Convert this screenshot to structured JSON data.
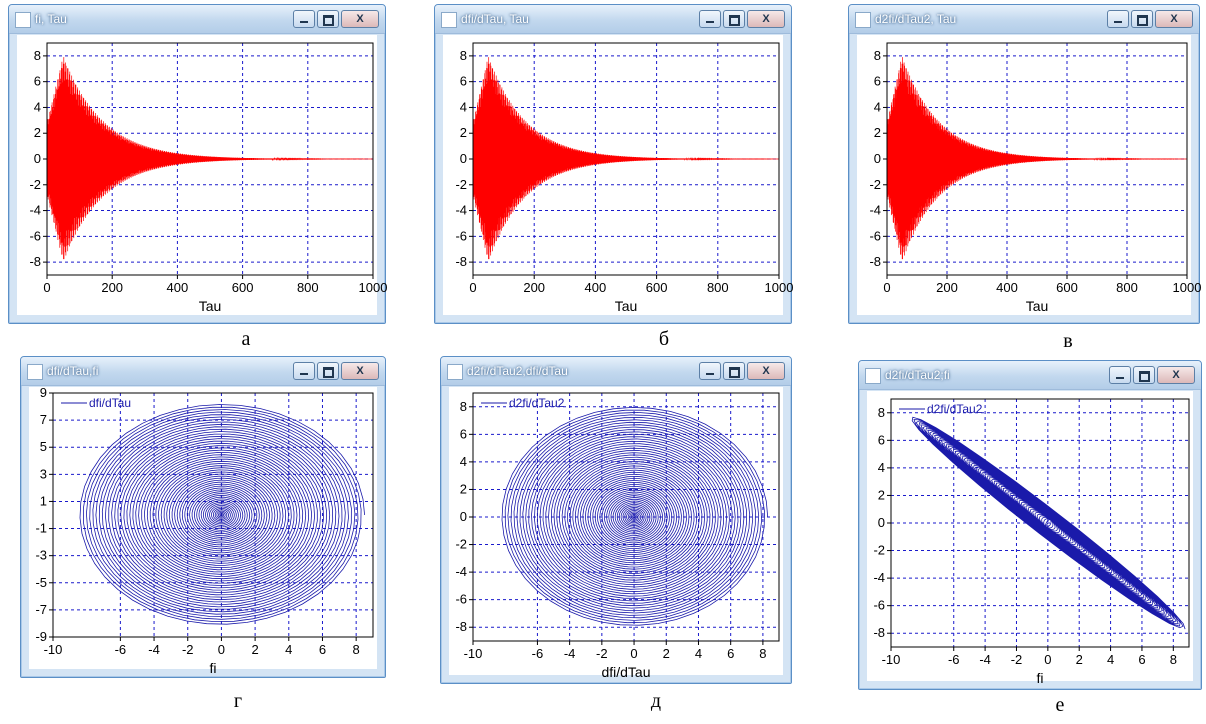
{
  "panel_labels": [
    "а",
    "б",
    "в",
    "г",
    "д",
    "е"
  ],
  "colors": {
    "time_trace": "#ff0000",
    "phase_trace": "#1a1aaa",
    "grid": "#1a1acc",
    "axis_text": "#000000"
  },
  "windows": [
    {
      "title": "fi, Tau",
      "close_label": "X"
    },
    {
      "title": "dfi/dTau, Tau",
      "close_label": "X"
    },
    {
      "title": "d2fi/dTau2, Tau",
      "close_label": "X"
    },
    {
      "title": "dfi/dTau,fi",
      "close_label": "X"
    },
    {
      "title": "d2fi/dTau2,dfi/dTau",
      "close_label": "X"
    },
    {
      "title": "d2fi/dTau2;fi",
      "close_label": "X"
    }
  ],
  "chart_data": [
    {
      "type": "line",
      "xlabel": "Tau",
      "ylabel": "",
      "xlim": [
        0,
        1000
      ],
      "ylim": [
        -9,
        9
      ],
      "grid": true,
      "x_ticks": [
        0,
        200,
        400,
        600,
        800,
        1000
      ],
      "y_ticks": [
        -8,
        -6,
        -4,
        -2,
        0,
        2,
        4,
        6,
        8
      ],
      "series": [
        {
          "color": "#ff0000",
          "envelope": {
            "amplitude": 8,
            "peak_at": 50,
            "decays_to_zero_by": 600
          }
        }
      ]
    },
    {
      "type": "line",
      "xlabel": "Tau",
      "ylabel": "",
      "xlim": [
        0,
        1000
      ],
      "ylim": [
        -9,
        9
      ],
      "grid": true,
      "x_ticks": [
        0,
        200,
        400,
        600,
        800,
        1000
      ],
      "y_ticks": [
        -8,
        -6,
        -4,
        -2,
        0,
        2,
        4,
        6,
        8
      ],
      "series": [
        {
          "color": "#ff0000",
          "envelope": {
            "amplitude": 8,
            "peak_at": 50,
            "decays_to_zero_by": 600
          }
        }
      ]
    },
    {
      "type": "line",
      "xlabel": "Tau",
      "ylabel": "",
      "xlim": [
        0,
        1000
      ],
      "ylim": [
        -9,
        9
      ],
      "grid": true,
      "x_ticks": [
        0,
        200,
        400,
        600,
        800,
        1000
      ],
      "y_ticks": [
        -8,
        -6,
        -4,
        -2,
        0,
        2,
        4,
        6,
        8
      ],
      "series": [
        {
          "color": "#ff0000",
          "envelope": {
            "amplitude": 8,
            "peak_at": 50,
            "decays_to_zero_by": 600
          }
        }
      ]
    },
    {
      "type": "line",
      "xlabel": "fi",
      "ylabel": "",
      "xlim": [
        -10,
        9
      ],
      "ylim": [
        -9,
        9
      ],
      "grid": true,
      "x_ticks": [
        -10,
        -6,
        -4,
        -2,
        0,
        2,
        4,
        6,
        8
      ],
      "y_ticks": [
        9,
        7,
        5,
        3,
        1,
        -1,
        -3,
        -5,
        -7,
        -9
      ],
      "legend": "top-left",
      "series": [
        {
          "name": "dfi/dTau",
          "color": "#1a1aaa",
          "shape": "spiral",
          "x_amplitude": 8.5,
          "y_amplitude": 8.2
        }
      ]
    },
    {
      "type": "line",
      "xlabel": "dfi/dTau",
      "ylabel": "",
      "xlim": [
        -10,
        9
      ],
      "ylim": [
        -9,
        9
      ],
      "grid": true,
      "x_ticks": [
        -10,
        -6,
        -4,
        -2,
        0,
        2,
        4,
        6,
        8
      ],
      "y_ticks": [
        8,
        6,
        4,
        2,
        0,
        -2,
        -4,
        -6,
        -8
      ],
      "legend": "top-left",
      "series": [
        {
          "name": "d2fi/dTau2",
          "color": "#1a1aaa",
          "shape": "spiral",
          "x_amplitude": 8.3,
          "y_amplitude": 8.0
        }
      ]
    },
    {
      "type": "line",
      "xlabel": "fi",
      "ylabel": "",
      "xlim": [
        -10,
        9
      ],
      "ylim": [
        -9,
        9
      ],
      "grid": true,
      "x_ticks": [
        -10,
        -6,
        -4,
        -2,
        0,
        2,
        4,
        6,
        8
      ],
      "y_ticks": [
        8,
        6,
        4,
        2,
        0,
        -2,
        -4,
        -6,
        -8
      ],
      "legend": "top-left",
      "series": [
        {
          "name": "d2fi/dTau2",
          "color": "#1a1aaa",
          "shape": "band",
          "endpoints": [
            [
              -9.3,
              7.7
            ],
            [
              8.2,
              -7.7
            ]
          ]
        }
      ]
    }
  ]
}
